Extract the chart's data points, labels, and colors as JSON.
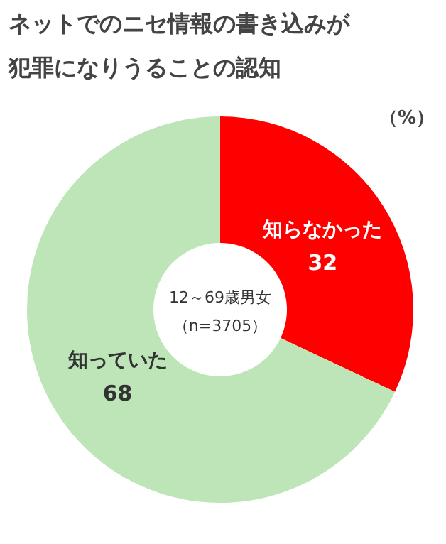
{
  "chart_data": {
    "type": "donut",
    "title": "ネットでのニセ情報の書き込みが犯罪になりうることの認知",
    "categories": [
      "知らなかった",
      "知っていた"
    ],
    "values": [
      32,
      68
    ],
    "colors": [
      "#ff0000",
      "#bde5b8"
    ],
    "data_labels": true,
    "annotations": [
      "12～69歳男女",
      "（n=3705）",
      "（%）"
    ]
  }
}
